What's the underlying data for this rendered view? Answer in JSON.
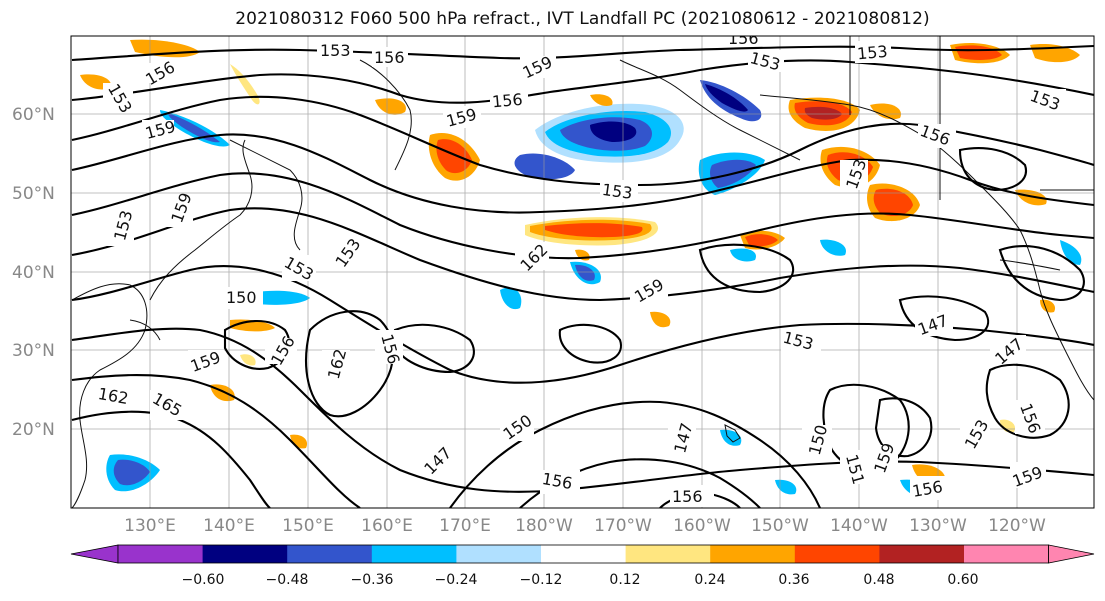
{
  "title": "2021080312 F060 500 hPa refract., IVT Landfall PC (2021080612 - 2021080812)",
  "lat_labels": [
    "60°N",
    "50°N",
    "40°N",
    "30°N",
    "20°N"
  ],
  "lon_labels": [
    "130°E",
    "140°E",
    "150°E",
    "160°E",
    "170°E",
    "180°W",
    "170°W",
    "160°W",
    "150°W",
    "140°W",
    "130°W",
    "120°W"
  ],
  "contour_labels": [
    "153",
    "156",
    "159",
    "153",
    "156",
    "159",
    "156",
    "153",
    "156",
    "153",
    "159",
    "153",
    "153",
    "162",
    "153",
    "150",
    "159",
    "147",
    "153",
    "147",
    "159",
    "156",
    "162",
    "165",
    "162",
    "150",
    "147",
    "150",
    "151",
    "159",
    "156",
    "153",
    "156",
    "159",
    "156",
    "156",
    "150"
  ],
  "colorbar": {
    "ticks": [
      "−0.60",
      "−0.48",
      "−0.36",
      "−0.24",
      "−0.12",
      "0.12",
      "0.24",
      "0.36",
      "0.48",
      "0.60"
    ],
    "colors": [
      "#9933cc",
      "#000080",
      "#3355cc",
      "#00bfff",
      "#b0e0ff",
      "#ffffff",
      "#ffe680",
      "#ffa500",
      "#ff4500",
      "#b22222",
      "#ff85b0"
    ]
  }
}
